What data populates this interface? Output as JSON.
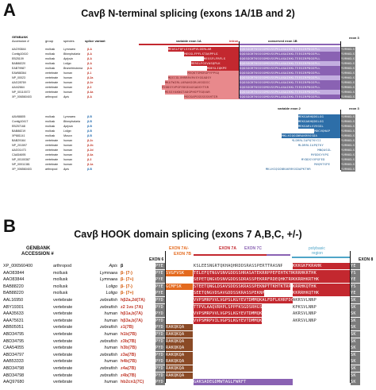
{
  "panelA": {
    "letter": "A",
    "title": "Cavβ N-terminal splicing (exons 1A/1B and 2)",
    "headers": {
      "genbank": "GENBANK",
      "accession": "Accession #",
      "group": "group",
      "species": "species",
      "splice_variant": "splice variant",
      "variable_exon_1a": "variable exon 1A",
      "intron1": "intron",
      "conserved_exon_1b": "conserved exon 1B",
      "exon3_top": "exon 3",
      "variable_exon_2": "variable exon 2",
      "exon3_bottom": "exon 3"
    },
    "rows_top": [
      {
        "acc": "AAO93844",
        "group": "mollusk",
        "species": "Lymnaea",
        "variant": "β-A",
        "seq": "MEASLFQFLSYAVPVLGSRLAR"
      },
      {
        "acc": "Contig10410",
        "group": "mollusk",
        "species": "Biomphalaria",
        "variant": "β-A",
        "seq": "MESSLFPFLSTAVPPLG"
      },
      {
        "acc": "EB25109",
        "group": "mollusk",
        "species": "Aplysia",
        "variant": "β-A",
        "seq": "MESSFLFRFLS"
      },
      {
        "acc": "BAB88220",
        "group": "mollusk",
        "species": "Loligo",
        "variant": "β-A",
        "seq": "MERSLFGSVASQPLK"
      },
      {
        "acc": "EAB79987",
        "group": "mollusk",
        "species": "Branchiostoma",
        "variant": "β-A",
        "seq": "MDESLIQKPE"
      },
      {
        "acc": "EAW88364",
        "group": "vertebrate",
        "species": "human",
        "variant": "β-1",
        "seq": "MVQKTSMSRGPYPPSQ"
      },
      {
        "acc": "NP_00023",
        "group": "vertebrate",
        "species": "human",
        "variant": "β-2a",
        "seq": "MQCCGLVHRRRVRVSYGSADSY"
      },
      {
        "acc": "AAG28769",
        "group": "vertebrate",
        "species": "human",
        "variant": "β-2e",
        "seq": "MKATWIRLLKRAKGGRLKSSDIC"
      },
      {
        "acc": "AAI42664",
        "group": "vertebrate",
        "species": "human",
        "variant": "β-3",
        "seq": "MYDDSYVPGFEDSEAGSADSYTSR"
      },
      {
        "acc": "NP_00110072",
        "group": "vertebrate",
        "species": "human",
        "variant": "β-4a",
        "seq": "MSSSYAKNGTADGPHSPTSQVAR"
      },
      {
        "acc": "XP_006560403",
        "group": "arthropod",
        "species": "Apis",
        "variant": "β-A",
        "seq": "MSGSAPSSSSSSVHTIR"
      }
    ],
    "rows_bottom": [
      {
        "acc": "AAV88805",
        "group": "mollusk",
        "species": "Lymnaea",
        "variant": "β-B",
        "seq": "MEKGARHQDSLGG"
      },
      {
        "acc": "Contig10417",
        "group": "mollusk",
        "species": "Biomphalaria",
        "variant": "β-B",
        "seq": "MEKGAKHQDSLGG"
      },
      {
        "acc": "EB257168",
        "group": "mollusk",
        "species": "Aplysia",
        "variant": "β-B",
        "seq": "MEKGARLVVVGGL"
      },
      {
        "acc": "BAB88219",
        "group": "mollusk",
        "species": "Loligo",
        "variant": "β-B",
        "seq": "MDCVQHAP"
      },
      {
        "acc": "XP681141",
        "group": "mollusk",
        "species": "Musca",
        "variant": "β-B",
        "seq": "MKLHIQGGNRAKRRSSDA"
      },
      {
        "acc": "BAB29164",
        "group": "vertebrate",
        "species": "human",
        "variant": "β-2c",
        "seq": "MLDRRLIAPQTKYII"
      },
      {
        "acc": "NP_201597",
        "group": "vertebrate",
        "species": "human",
        "variant": "β-2b",
        "seq": "MLDRRLIAPQTKY"
      },
      {
        "acc": "AAG01473",
        "group": "vertebrate",
        "species": "human",
        "variant": "β-2d",
        "seq": "MNQASGL"
      },
      {
        "acc": "CAA54695",
        "group": "vertebrate",
        "species": "human",
        "variant": "β-4a",
        "seq": "MYDDSYVPG"
      },
      {
        "acc": "NP_00100387",
        "group": "vertebrate",
        "species": "human",
        "variant": "β-3",
        "seq": "MYDDSYVPGFED"
      },
      {
        "acc": "NP_00011381",
        "group": "vertebrate",
        "species": "human",
        "variant": "β-1a",
        "seq": "MVQRTSPE"
      },
      {
        "acc": "XP_006560403",
        "group": "arthropod",
        "species": "Apis",
        "variant": "β-B",
        "seq": "MKLHIQGGNRAKRRSSDAPKTHR"
      }
    ],
    "exon1b_seq": "SQGSGGRTKSSSSMSVSSPKLASAIKKLTEEGIRPDGSPLL",
    "exon3_seq": "YVRNGLS",
    "exon2_conserved": "LGGWTYFFQRLDVSRSGHSPK"
  },
  "panelB": {
    "letter": "B",
    "title": "Cavβ HOOK domain splicing (exons 7 A,B,C, +/-)",
    "headers": {
      "genbank": "GENBANK",
      "accession": "ACCESSION #",
      "exon7a_minus": "EXON 7A/-",
      "exon7b": "EXON 7B",
      "exon6": "EXON 6",
      "exon7a": "EXON 7A",
      "exon7c": "EXON 7C",
      "polybasic": "polybasic",
      "region": "region",
      "exon8": "EXON 8"
    },
    "rows": [
      {
        "acc": "XP_006560400",
        "group": "arthropod",
        "species": "Apis",
        "variant": "β",
        "vclass": "k",
        "ex6": "PYE",
        "e7b": "",
        "e7a": "KSLEESNGRTQKHAQHRDDSRASSPERTTRASNP",
        "e7c": "",
        "poly": "KKKGKFKRAHK",
        "ex8": "YE"
      },
      {
        "acc": "AAO83844",
        "group": "mollusk",
        "species": "Lymnaea",
        "variant": "β- (7-)",
        "vclass": "o",
        "ex6": "PYE",
        "e7b": "SVGFVSK",
        "e7a": "TELEFQTNGVSNVGDDSSHRASATEKRRPPEFEHTKTRPTQIERTHNK",
        "e7c": "",
        "poly": "KRRHKRTHK",
        "ex8": "YS"
      },
      {
        "acc": "AAO83844",
        "group": "mollusk",
        "species": "Lymnaea",
        "variant": "β- (7+)",
        "vclass": "o",
        "ex6": "PYE",
        "e7b": "",
        "e7a": "SEPETQNGVDSNVGDDSSDRASSPEKRRFRDEQHKTRP",
        "e7c": "",
        "poly": "KKRRHKRTHK",
        "ex8": "YE"
      },
      {
        "acc": "BAB88220",
        "group": "mollusk",
        "species": "Loligo",
        "variant": "β- (7-)",
        "vclass": "o",
        "ex6": "PYE",
        "e7b": "GCMFSK",
        "e7a": "STEETQNGLDSAVSDDSSKRASSPEKNPTTKHTKTRP",
        "e7c": "",
        "poly": "KRRHKQTHK",
        "ex8": "YS"
      },
      {
        "acc": "BAB88220",
        "group": "mollusk",
        "species": "Loligo",
        "variant": "β- (7+)",
        "vclass": "o",
        "ex6": "PYE",
        "e7b": "",
        "e7a": "SEETQNGVDSAVGDDSSKRASSPEKNP",
        "e7c": "",
        "poly": "KKRRHKQTHK",
        "ex8": "YE"
      },
      {
        "acc": "AAL16950",
        "group": "vertebrate",
        "species": "zebrafish",
        "variant": "hβ2a,2d(7A)",
        "vclass": "r",
        "ex6": "PYD",
        "e7b": "",
        "e7a": "VVPSMRPVVLVGPSLKGYEVTDMMQKALFDFLKHRFDGRISITRVTADISL",
        "e7c": "",
        "poly": "AKRSVLNNP",
        "ex8": "SK"
      },
      {
        "acc": "ABY19301",
        "group": "vertebrate",
        "species": "zebrafish",
        "variant": "z2 1vs (7A)",
        "vclass": "r",
        "ex6": "PYD",
        "e7b": "",
        "e7a": "TTPVLAAQVRHPLSPPFKSGDSRHGS",
        "e7c": "",
        "poly": "KPKSVLNNP",
        "ex8": "SK"
      },
      {
        "acc": "AAA35633",
        "group": "vertebrate",
        "species": "human",
        "variant": "hβ1a,b(7A)",
        "vclass": "r",
        "ex6": "PYD",
        "e7b": "",
        "e7a": "VVPSMRPVVLVGPSLKGYEVTDMMQK",
        "e7c": "",
        "poly": "AKRSVLNNP",
        "ex8": "SK"
      },
      {
        "acc": "AAA75631",
        "group": "vertebrate",
        "species": "human",
        "variant": "hβ3a,b(7A)",
        "vclass": "r",
        "ex6": "PYD",
        "e7b": "",
        "e7a": "VVPSMRPVILVGPSLKGYEVTDMMQK",
        "e7c": "",
        "poly": "AKRSVLNNP",
        "ex8": "SK"
      },
      {
        "acc": "ABB05051",
        "group": "vertebrate",
        "species": "zebrafish",
        "variant": "z1(7B)",
        "vclass": "r",
        "ex6": "PYD",
        "e7b": "RAKQKQA",
        "e7a": "",
        "e7c": "",
        "poly": "",
        "ex8": "SK"
      },
      {
        "acc": "ABD34795",
        "group": "vertebrate",
        "species": "human",
        "variant": "h1b(7B)",
        "vclass": "r",
        "ex6": "PYD",
        "e7b": "RAKQKQA",
        "e7a": "",
        "e7c": "",
        "poly": "",
        "ex8": "SK"
      },
      {
        "acc": "ABD34795",
        "group": "vertebrate",
        "species": "zebrafish",
        "variant": "z3b(7B)",
        "vclass": "r",
        "ex6": "PYD",
        "e7b": "RAKQKQA",
        "e7a": "",
        "e7c": "",
        "poly": "",
        "ex8": "SK"
      },
      {
        "acc": "CAA54055",
        "group": "vertebrate",
        "species": "human",
        "variant": "h3b(7B)",
        "vclass": "r",
        "ex6": "PYD",
        "e7b": "RAKQKQA",
        "e7a": "",
        "e7c": "",
        "poly": "",
        "ex8": "SK"
      },
      {
        "acc": "ABD34797",
        "group": "vertebrate",
        "species": "zebrafish",
        "variant": "z3a(7B)",
        "vclass": "r",
        "ex6": "PYD",
        "e7b": "RAKQKQA",
        "e7a": "",
        "e7c": "",
        "poly": "",
        "ex8": "SK"
      },
      {
        "acc": "AAB53333",
        "group": "vertebrate",
        "species": "human",
        "variant": "h4b(7B)",
        "vclass": "r",
        "ex6": "PYD",
        "e7b": "RAKQKQA",
        "e7a": "",
        "e7c": "",
        "poly": "",
        "ex8": "SK"
      },
      {
        "acc": "ABD34798",
        "group": "vertebrate",
        "species": "zebrafish",
        "variant": "z4a(7B)",
        "vclass": "r",
        "ex6": "PYD",
        "e7b": "RAKQKQA",
        "e7a": "",
        "e7c": "",
        "poly": "",
        "ex8": "SK"
      },
      {
        "acc": "ABD34798",
        "group": "vertebrate",
        "species": "zebrafish",
        "variant": "z4b(7B)",
        "vclass": "r",
        "ex6": "PYD",
        "e7b": "RAKQKQA",
        "e7a": "",
        "e7c": "",
        "poly": "",
        "ex8": "SK"
      },
      {
        "acc": "AAQ97680",
        "group": "vertebrate",
        "species": "human",
        "variant": "hb2cn1(7C)",
        "vclass": "r",
        "ex6": "PYD",
        "e7b": "",
        "e7a": "",
        "e7c": "GAKSADEGDMWTAGLFWRFT",
        "poly": "",
        "ex8": "SK"
      }
    ]
  },
  "colors": {
    "red_dark": "#c3282f",
    "red_light": "#e8898c",
    "purple_dark": "#8a62b3",
    "purple_light": "#c3aee0",
    "blue_dark": "#2d6ea8",
    "blue_light": "#a9c6e2",
    "orange": "#e46a1e",
    "brown": "#8a4a26",
    "gray_dark": "#7c7c7c",
    "gray_light": "#cfcfcf",
    "teal": "#4fa5c8",
    "variant_red": "#c0392b",
    "variant_orange": "#d35400",
    "variant_blue": "#2a6fb0"
  }
}
